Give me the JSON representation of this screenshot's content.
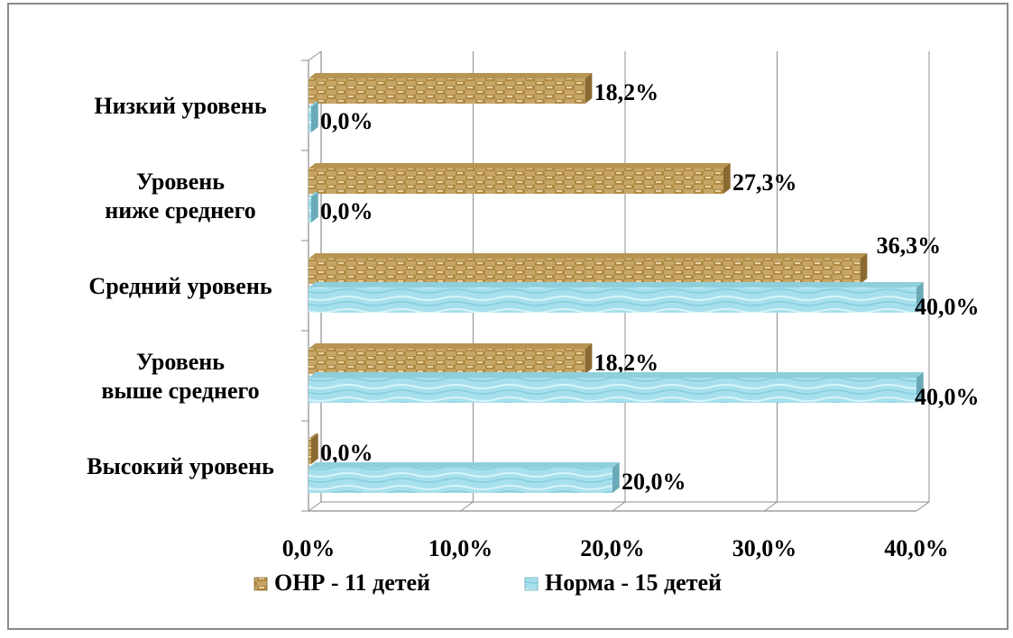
{
  "chart_data": {
    "type": "bar",
    "orientation": "horizontal",
    "categories": [
      [
        "Высокий уровень"
      ],
      [
        "Уровень",
        "выше среднего"
      ],
      [
        "Средний уровень"
      ],
      [
        "Уровень",
        "ниже среднего"
      ],
      [
        "Низкий уровень"
      ]
    ],
    "series": [
      {
        "name": "ОНР - 11 детей",
        "values": [
          0.0,
          18.2,
          36.3,
          27.3,
          18.2
        ],
        "labels": [
          "0,0%",
          "18,2%",
          "36,3%",
          "27,3%",
          "18,2%"
        ],
        "color": "#c9a86a"
      },
      {
        "name": "Норма - 15 детей",
        "values": [
          20.0,
          40.0,
          40.0,
          0.0,
          0.0
        ],
        "labels": [
          "20,0%",
          "40,0%",
          "40,0%",
          "0,0%",
          "0,0%"
        ],
        "color": "#a8e2ee"
      }
    ],
    "xlim": [
      0,
      40
    ],
    "xticks": [
      "0,0%",
      "10,0%",
      "20,0%",
      "30,0%",
      "40,0%"
    ],
    "grid": true,
    "legend_position": "bottom"
  }
}
